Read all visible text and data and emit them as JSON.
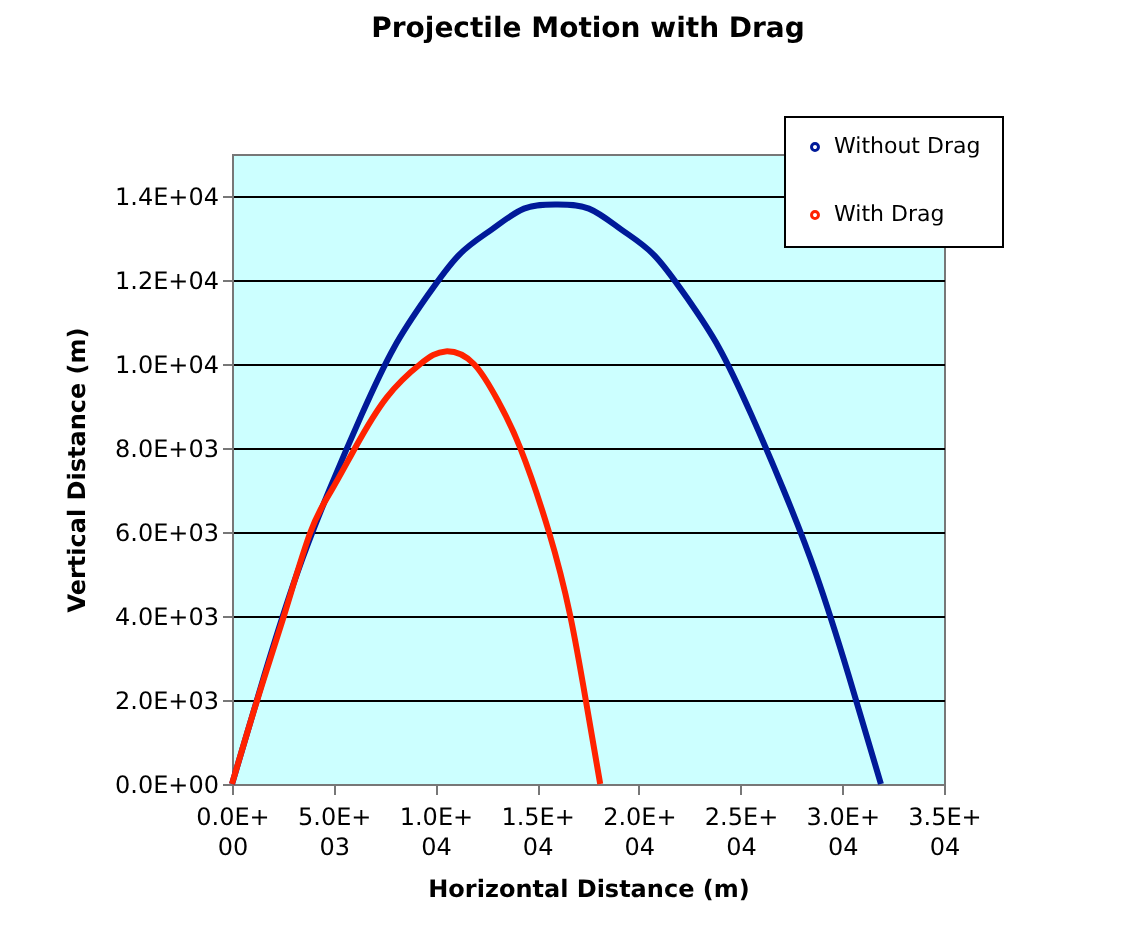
{
  "chart_data": {
    "type": "line",
    "title": "Projectile Motion with Drag",
    "xlabel": "Horizontal Distance (m)",
    "ylabel": "Vertical Distance (m)",
    "series": [
      {
        "name": "Without Drag",
        "color": "#001a99",
        "x": [
          0,
          1595,
          3190,
          4785,
          6380,
          7975,
          9570,
          11165,
          12760,
          14355,
          15950,
          17545,
          19140,
          20735,
          22330,
          23925,
          25520,
          27115,
          28710,
          30305,
          31900
        ],
        "values": [
          0,
          2600,
          5000,
          7000,
          8800,
          10400,
          11600,
          12600,
          13200,
          13700,
          13800,
          13700,
          13200,
          12600,
          11600,
          10400,
          8800,
          7000,
          5000,
          2600,
          0
        ]
      },
      {
        "name": "With Drag",
        "color": "#ff2200",
        "x": [
          0,
          1240,
          2550,
          3860,
          4900,
          6050,
          7600,
          9260,
          10500,
          11890,
          13100,
          14170,
          15580,
          16630,
          17390,
          18100
        ],
        "values": [
          0,
          2000,
          4000,
          6000,
          7000,
          8000,
          9200,
          10000,
          10300,
          10000,
          9100,
          8000,
          6000,
          4000,
          2000,
          0
        ]
      }
    ],
    "xlim": [
      0,
      35000
    ],
    "ylim": [
      0,
      15000
    ],
    "xticks": [
      {
        "value": 0,
        "label": "0.0E+00"
      },
      {
        "value": 5000,
        "label": "5.0E+03"
      },
      {
        "value": 10000,
        "label": "1.0E+04"
      },
      {
        "value": 15000,
        "label": "1.5E+04"
      },
      {
        "value": 20000,
        "label": "2.0E+04"
      },
      {
        "value": 25000,
        "label": "2.5E+04"
      },
      {
        "value": 30000,
        "label": "3.0E+04"
      },
      {
        "value": 35000,
        "label": "3.5E+04"
      }
    ],
    "yticks": [
      {
        "value": 0,
        "label": "0.0E+00"
      },
      {
        "value": 2000,
        "label": "2.0E+03"
      },
      {
        "value": 4000,
        "label": "4.0E+03"
      },
      {
        "value": 6000,
        "label": "6.0E+03"
      },
      {
        "value": 8000,
        "label": "8.0E+03"
      },
      {
        "value": 10000,
        "label": "1.0E+04"
      },
      {
        "value": 12000,
        "label": "1.2E+04"
      },
      {
        "value": 14000,
        "label": "1.4E+04"
      }
    ],
    "grid": "y",
    "legend": "top right"
  }
}
